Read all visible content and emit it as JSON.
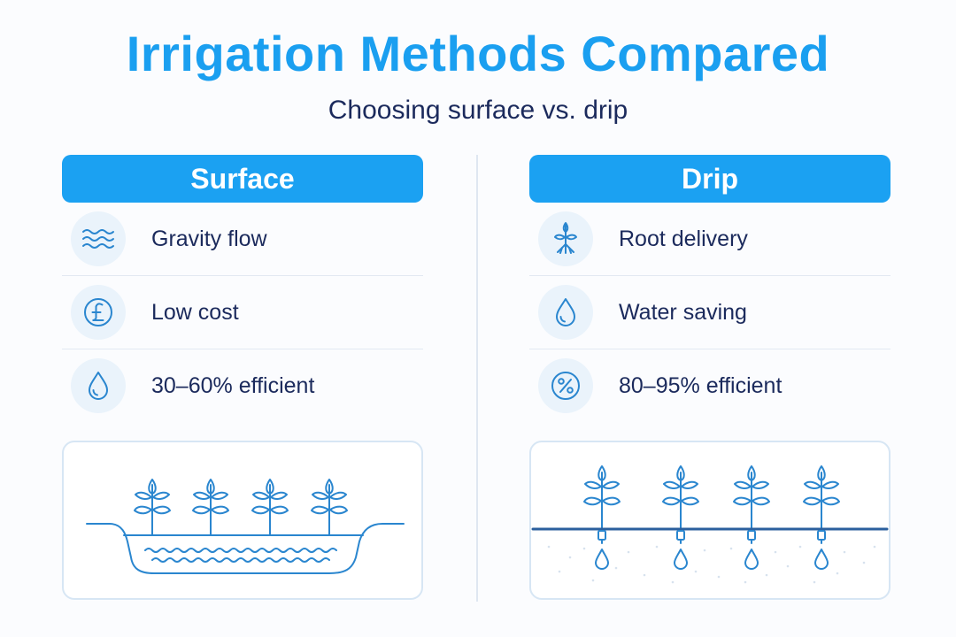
{
  "title": "Irrigation Methods Compared",
  "subtitle": "Choosing surface vs. drip",
  "colors": {
    "accent": "#1ba1f2",
    "title": "#1a9ff0",
    "text": "#1b2a5c",
    "icon_bg": "#eaf3fb",
    "line_art": "#2a86cf"
  },
  "surface": {
    "header": "Surface",
    "rows": [
      {
        "icon": "waves-icon",
        "label": "Gravity flow"
      },
      {
        "icon": "pound-icon",
        "label": "Low cost"
      },
      {
        "icon": "water-drop-icon",
        "label": "30–60% efficient"
      }
    ],
    "illustration": "furrow-irrigation-illustration"
  },
  "drip": {
    "header": "Drip",
    "rows": [
      {
        "icon": "root-icon",
        "label": "Root delivery"
      },
      {
        "icon": "water-drop-icon",
        "label": "Water saving"
      },
      {
        "icon": "percent-icon",
        "label": "80–95% efficient"
      }
    ],
    "illustration": "drip-line-illustration"
  }
}
